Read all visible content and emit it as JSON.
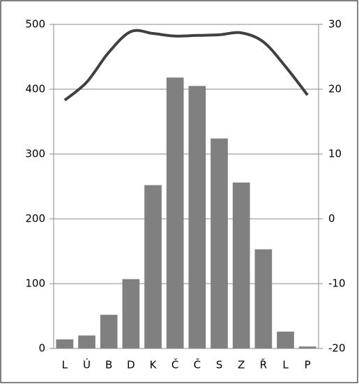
{
  "chart_data": {
    "type": "bar",
    "categories": [
      "L",
      "Ú",
      "B",
      "D",
      "K",
      "Č",
      "Č",
      "S",
      "Z",
      "Ř",
      "L",
      "P"
    ],
    "series": [
      {
        "type": "bar",
        "color": "#808080",
        "values": [
          14,
          20,
          52,
          107,
          252,
          418,
          405,
          324,
          256,
          153,
          26,
          3
        ]
      },
      {
        "type": "line",
        "axis": "y2",
        "color": "#404040",
        "values": [
          18.3,
          21.1,
          25.7,
          28.9,
          28.6,
          28.2,
          28.3,
          28.4,
          28.7,
          27.3,
          23.5,
          19.1
        ]
      }
    ],
    "ylim": [
      0,
      500
    ],
    "yticks": [
      0,
      100,
      200,
      300,
      400,
      500
    ],
    "y2lim": [
      -20,
      30
    ],
    "y2ticks": [
      -20,
      -10,
      0,
      10,
      20,
      30
    ],
    "grid": true
  }
}
